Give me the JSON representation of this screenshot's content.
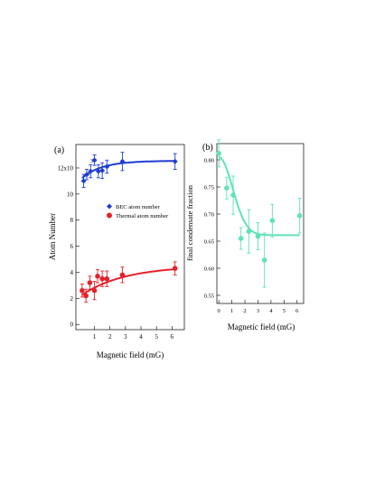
{
  "chart_data": [
    {
      "panel": "(a)",
      "type": "scatter",
      "xlabel": "Magnetic field (mG)",
      "ylabel": "Atom Number",
      "xlim": [
        -0.2,
        6.8
      ],
      "ylim": [
        -0.4,
        13.8
      ],
      "xticks": [
        1,
        2,
        3,
        4,
        5,
        6
      ],
      "yticks": [
        0,
        2,
        4,
        6,
        8,
        10,
        12
      ],
      "ytick_labels": [
        "0",
        "2",
        "4",
        "6",
        "8",
        "10",
        "12x10"
      ],
      "ytick_exponent": "3",
      "grid": false,
      "legend_position": "center-right",
      "series": [
        {
          "name": "BEC atom number",
          "marker": "diamond",
          "color": "#1f3fd0",
          "x": [
            0.3,
            0.5,
            0.75,
            1.0,
            1.25,
            1.5,
            1.8,
            2.8,
            6.2
          ],
          "y": [
            11.0,
            11.5,
            11.75,
            12.6,
            11.75,
            11.8,
            12.1,
            12.5,
            12.5
          ],
          "err": [
            0.5,
            0.4,
            0.5,
            0.4,
            0.5,
            0.6,
            0.5,
            0.7,
            0.6
          ],
          "fit": {
            "a": 12.55,
            "b": 1.55,
            "tau": 1.3
          }
        },
        {
          "name": "Thermal atom number",
          "marker": "circle",
          "color": "#e4222a",
          "x": [
            0.2,
            0.45,
            0.7,
            1.0,
            1.2,
            1.5,
            1.8,
            2.8,
            6.2
          ],
          "y": [
            2.6,
            2.2,
            3.2,
            2.6,
            3.7,
            3.5,
            3.5,
            3.8,
            4.3
          ],
          "err": [
            0.5,
            0.5,
            0.5,
            0.7,
            0.5,
            0.6,
            0.6,
            0.6,
            0.5
          ],
          "fit": {
            "a": 4.5,
            "b": 2.4,
            "tau": 2.8
          }
        }
      ]
    },
    {
      "panel": "(b)",
      "type": "scatter",
      "xlabel": "Magnetic field (mG)",
      "ylabel": "final condensate fraction",
      "xlim": [
        -0.15,
        6.5
      ],
      "ylim": [
        0.535,
        0.83
      ],
      "xticks": [
        0,
        1,
        2,
        3,
        4,
        5,
        6
      ],
      "yticks": [
        0.55,
        0.6,
        0.65,
        0.7,
        0.75,
        0.8
      ],
      "ytick_labels": [
        "0.55",
        "0.60",
        "0.65",
        "0.70",
        "0.75",
        "0.80"
      ],
      "grid": false,
      "series": [
        {
          "marker": "circle",
          "color": "#5ee3b6",
          "x": [
            0.0,
            0.6,
            1.1,
            1.7,
            2.3,
            3.0,
            3.5,
            4.1,
            6.2
          ],
          "y": [
            0.812,
            0.748,
            0.735,
            0.655,
            0.668,
            0.659,
            0.615,
            0.688,
            0.697
          ],
          "err": [
            0.025,
            0.02,
            0.035,
            0.02,
            0.04,
            0.025,
            0.05,
            0.03,
            0.032
          ],
          "fit": {
            "type": "gaussian",
            "base": 0.661,
            "amp": 0.144,
            "sigma": 1.05,
            "x_end": 6.2
          }
        }
      ]
    }
  ]
}
